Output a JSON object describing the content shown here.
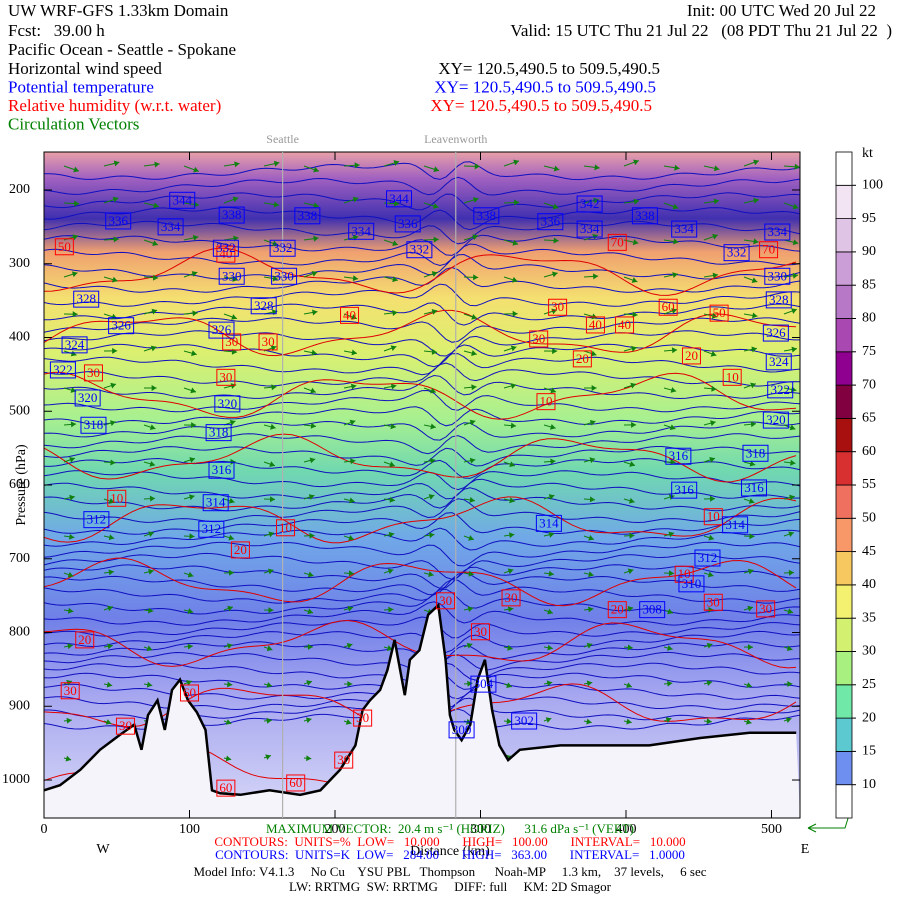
{
  "chart_data": {
    "type": "cross-section",
    "title": "UW WRF-GFS 1.33km Domain",
    "init": "Init: 00 UTC Wed 20 Jul 22",
    "forecast": "Fcst:   39.00 h",
    "valid": "Valid: 15 UTC Thu 21 Jul 22   (08 PDT Thu 21 Jul 22  )",
    "subtitle": "Pacific Ocean - Seattle - Spokane",
    "fields": [
      {
        "name": "Horizontal wind speed",
        "xy": "XY= 120.5,490.5 to 509.5,490.5",
        "color": "#000000"
      },
      {
        "name": "Potential temperature",
        "xy": "XY= 120.5,490.5 to 509.5,490.5",
        "color": "#0000ff"
      },
      {
        "name": "Relative humidity (w.r.t. water)",
        "xy": "XY= 120.5,490.5 to 509.5,490.5",
        "color": "#ff0000"
      },
      {
        "name": "Circulation Vectors",
        "color": "#008000"
      }
    ],
    "y_label": "Pressure (hPa)",
    "x_label": "Distance (km)",
    "west": "W",
    "east": "E",
    "xlim": [
      0,
      519.6
    ],
    "ylim": [
      148.5,
      1051.5
    ],
    "xticks": [
      0,
      100,
      200,
      300,
      400,
      500
    ],
    "yticks": [
      200,
      300,
      400,
      500,
      600,
      700,
      800,
      900,
      1000
    ],
    "locations": [
      {
        "name": "Seattle",
        "x": 164
      },
      {
        "name": "Leavenworth",
        "x": 283
      }
    ],
    "colorbar": {
      "unit": "kt",
      "levels": [
        10,
        15,
        20,
        25,
        30,
        35,
        40,
        45,
        50,
        55,
        60,
        65,
        70,
        75,
        80,
        85,
        90,
        95,
        100
      ],
      "colors": [
        "#ffffff",
        "#6f8ff0",
        "#5cc8d0",
        "#70e8a8",
        "#a8f080",
        "#d4f070",
        "#f4f070",
        "#f8c860",
        "#f89868",
        "#f07060",
        "#d83030",
        "#a81010",
        "#800040",
        "#900090",
        "#a848b0",
        "#b878c8",
        "#cc9ed8",
        "#e0c4e6",
        "#f2e4f2",
        "#ffffff"
      ]
    },
    "theta_color": "#0000ff",
    "rh_color": "#ff0000",
    "theta_labels": [
      {
        "value": 344,
        "x": 95,
        "p": 214
      },
      {
        "value": 336,
        "x": 51,
        "p": 242
      },
      {
        "value": 334,
        "x": 87,
        "p": 250
      },
      {
        "value": 338,
        "x": 129,
        "p": 234
      },
      {
        "value": 332,
        "x": 125,
        "p": 279
      },
      {
        "value": 330,
        "x": 129,
        "p": 317
      },
      {
        "value": 332,
        "x": 164,
        "p": 279
      },
      {
        "value": 330,
        "x": 165,
        "p": 317
      },
      {
        "value": 338,
        "x": 181,
        "p": 235
      },
      {
        "value": 328,
        "x": 151,
        "p": 357
      },
      {
        "value": 326,
        "x": 122,
        "p": 390
      },
      {
        "value": 328,
        "x": 29,
        "p": 348
      },
      {
        "value": 326,
        "x": 53,
        "p": 384
      },
      {
        "value": 324,
        "x": 21,
        "p": 410
      },
      {
        "value": 322,
        "x": 13,
        "p": 444
      },
      {
        "value": 320,
        "x": 30,
        "p": 482
      },
      {
        "value": 318,
        "x": 34,
        "p": 519
      },
      {
        "value": 320,
        "x": 126,
        "p": 490
      },
      {
        "value": 318,
        "x": 120,
        "p": 529
      },
      {
        "value": 316,
        "x": 122,
        "p": 580
      },
      {
        "value": 314,
        "x": 118,
        "p": 624
      },
      {
        "value": 312,
        "x": 36,
        "p": 647
      },
      {
        "value": 312,
        "x": 115,
        "p": 660
      },
      {
        "value": 334,
        "x": 218,
        "p": 256
      },
      {
        "value": 344,
        "x": 244,
        "p": 212
      },
      {
        "value": 336,
        "x": 250,
        "p": 246
      },
      {
        "value": 332,
        "x": 258,
        "p": 281
      },
      {
        "value": 338,
        "x": 304,
        "p": 235
      },
      {
        "value": 336,
        "x": 348,
        "p": 243
      },
      {
        "value": 342,
        "x": 375,
        "p": 219
      },
      {
        "value": 334,
        "x": 375,
        "p": 253
      },
      {
        "value": 338,
        "x": 413,
        "p": 235
      },
      {
        "value": 334,
        "x": 440,
        "p": 253
      },
      {
        "value": 332,
        "x": 476,
        "p": 285
      },
      {
        "value": 334,
        "x": 504,
        "p": 257
      },
      {
        "value": 330,
        "x": 504,
        "p": 317
      },
      {
        "value": 328,
        "x": 505,
        "p": 349
      },
      {
        "value": 326,
        "x": 503,
        "p": 394
      },
      {
        "value": 324,
        "x": 505,
        "p": 433
      },
      {
        "value": 322,
        "x": 506,
        "p": 471
      },
      {
        "value": 320,
        "x": 503,
        "p": 512
      },
      {
        "value": 318,
        "x": 489,
        "p": 557
      },
      {
        "value": 316,
        "x": 436,
        "p": 561
      },
      {
        "value": 316,
        "x": 440,
        "p": 607
      },
      {
        "value": 316,
        "x": 488,
        "p": 604
      },
      {
        "value": 314,
        "x": 347,
        "p": 652
      },
      {
        "value": 314,
        "x": 475,
        "p": 654
      },
      {
        "value": 312,
        "x": 456,
        "p": 699
      },
      {
        "value": 310,
        "x": 445,
        "p": 734
      },
      {
        "value": 308,
        "x": 418,
        "p": 769
      },
      {
        "value": 300,
        "x": 287,
        "p": 932
      },
      {
        "value": 302,
        "x": 330,
        "p": 920
      },
      {
        "value": 304,
        "x": 302,
        "p": 870
      }
    ],
    "rh_labels": [
      {
        "value": 50,
        "x": 14,
        "p": 277
      },
      {
        "value": 40,
        "x": 125,
        "p": 287
      },
      {
        "value": 30,
        "x": 129,
        "p": 406
      },
      {
        "value": 30,
        "x": 154,
        "p": 406
      },
      {
        "value": 40,
        "x": 210,
        "p": 370
      },
      {
        "value": 30,
        "x": 340,
        "p": 402
      },
      {
        "value": 30,
        "x": 353,
        "p": 359
      },
      {
        "value": 40,
        "x": 379,
        "p": 383
      },
      {
        "value": 40,
        "x": 399,
        "p": 383
      },
      {
        "value": 60,
        "x": 429,
        "p": 359
      },
      {
        "value": 50,
        "x": 464,
        "p": 367
      },
      {
        "value": 20,
        "x": 370,
        "p": 429
      },
      {
        "value": 20,
        "x": 445,
        "p": 425
      },
      {
        "value": 10,
        "x": 473,
        "p": 454
      },
      {
        "value": 10,
        "x": 345,
        "p": 487
      },
      {
        "value": 30,
        "x": 34,
        "p": 448
      },
      {
        "value": 30,
        "x": 125,
        "p": 454
      },
      {
        "value": 10,
        "x": 50,
        "p": 618
      },
      {
        "value": 10,
        "x": 166,
        "p": 658
      },
      {
        "value": 20,
        "x": 135,
        "p": 688
      },
      {
        "value": 20,
        "x": 28,
        "p": 810
      },
      {
        "value": 30,
        "x": 18,
        "p": 879
      },
      {
        "value": 60,
        "x": 100,
        "p": 882
      },
      {
        "value": 30,
        "x": 56,
        "p": 927
      },
      {
        "value": 30,
        "x": 219,
        "p": 916
      },
      {
        "value": 30,
        "x": 300,
        "p": 799
      },
      {
        "value": 30,
        "x": 321,
        "p": 753
      },
      {
        "value": 30,
        "x": 276,
        "p": 757
      },
      {
        "value": 20,
        "x": 394,
        "p": 769
      },
      {
        "value": 30,
        "x": 460,
        "p": 759
      },
      {
        "value": 30,
        "x": 496,
        "p": 768
      },
      {
        "value": 10,
        "x": 440,
        "p": 721
      },
      {
        "value": 10,
        "x": 460,
        "p": 643
      },
      {
        "value": 30,
        "x": 206,
        "p": 973
      },
      {
        "value": 60,
        "x": 125,
        "p": 1011
      },
      {
        "value": 60,
        "x": 173,
        "p": 1004
      },
      {
        "value": 70,
        "x": 394,
        "p": 271
      },
      {
        "value": 70,
        "x": 498,
        "p": 281
      }
    ],
    "terrain": {
      "x": [
        0,
        11,
        25,
        38.5,
        52,
        62,
        67,
        71.5,
        78,
        83,
        88,
        93.5,
        99,
        105,
        111,
        115.5,
        121,
        135,
        155,
        176,
        190,
        203.5,
        214,
        219,
        224,
        231,
        236,
        241,
        248,
        251.5,
        258,
        264,
        271,
        276,
        279,
        282,
        287,
        293,
        298,
        303,
        308,
        313,
        319,
        327,
        355,
        382,
        416,
        451,
        485,
        517
      ],
      "p": [
        1014,
        1007,
        986,
        959,
        939,
        925,
        959,
        912,
        892,
        932,
        878,
        864,
        892,
        908,
        932,
        1014,
        1018,
        1020,
        1014,
        1020,
        1014,
        986,
        953,
        905,
        892,
        878,
        851,
        810,
        885,
        837,
        824,
        776,
        763,
        837,
        912,
        932,
        946,
        925,
        864,
        837,
        905,
        953,
        973,
        959,
        953,
        953,
        953,
        943,
        936,
        936
      ]
    },
    "footer": [
      {
        "text": "MAXIMUM VECTOR:  20.4 m s⁻¹ (HORIZ)      31.6 dPa s⁻¹ (VERT)",
        "color": "#008000"
      },
      {
        "text": "CONTOURS:  UNITS=%  LOW=   10.000       HIGH=   100.00       INTERVAL=   10.000",
        "color": "#ff0000"
      },
      {
        "text": "CONTOURS:  UNITS=K  LOW=   284.00       HIGH=   363.00       INTERVAL=   1.0000",
        "color": "#0000ff"
      },
      {
        "text": "Model Info: V4.1.3     No Cu    YSU PBL   Thompson      Noah-MP     1.3 km,    37 levels,     6 sec",
        "color": "#000000"
      },
      {
        "text": "LW: RRTMG  SW: RRTMG     DIFF: full     KM: 2D Smagor",
        "color": "#000000"
      }
    ]
  }
}
